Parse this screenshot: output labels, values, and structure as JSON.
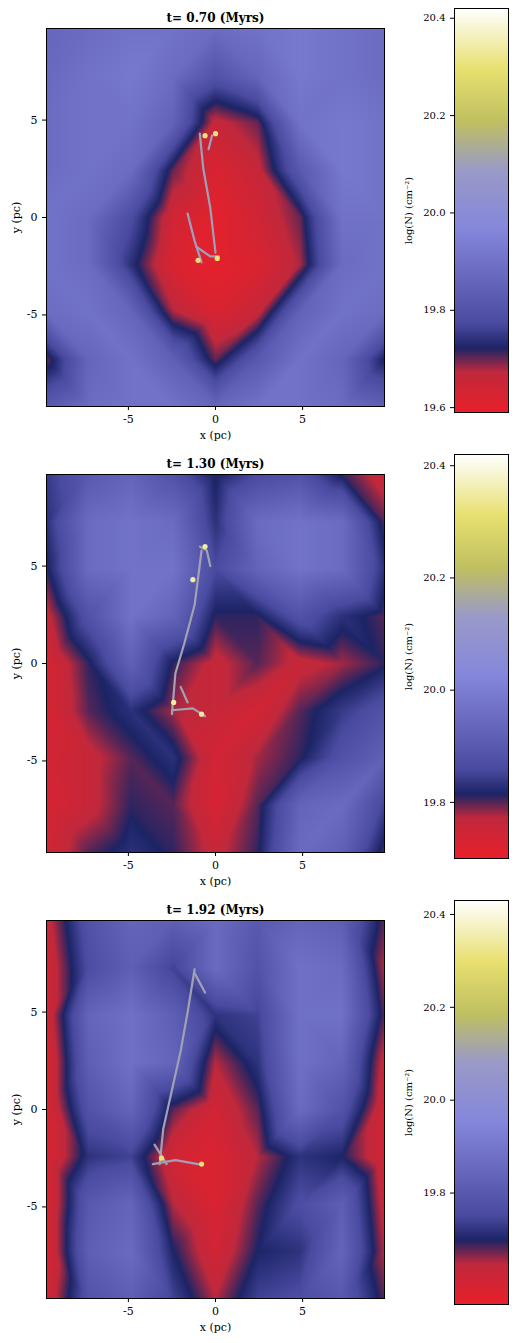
{
  "chart_data": [
    {
      "type": "heatmap",
      "title": "t= 0.70 (Myrs)",
      "x_label": "x (pc)",
      "y_label": "y (pc)",
      "xlim": [
        -9.7,
        9.7
      ],
      "ylim": [
        -9.7,
        9.7
      ],
      "xticks": [
        -5,
        0,
        5
      ],
      "yticks": [
        -5,
        0,
        5
      ],
      "cells": {
        "x": [
          -9.7,
          -7.275,
          -4.85,
          -2.425,
          0,
          2.425,
          4.85,
          7.275,
          9.7
        ],
        "y": [
          9.7,
          7.275,
          4.85,
          2.425,
          0,
          -2.425,
          -4.85,
          -7.275,
          -9.7
        ],
        "values": [
          [
            19.86,
            19.88,
            19.9,
            19.9,
            19.88,
            19.9,
            19.92,
            19.9,
            19.88
          ],
          [
            19.87,
            19.9,
            19.92,
            19.88,
            19.8,
            19.86,
            19.92,
            19.9,
            19.88
          ],
          [
            19.88,
            19.9,
            19.9,
            19.85,
            19.66,
            19.7,
            19.9,
            19.92,
            19.9
          ],
          [
            19.88,
            19.9,
            19.88,
            19.7,
            19.62,
            19.66,
            19.82,
            19.92,
            19.9
          ],
          [
            19.9,
            19.88,
            19.78,
            19.64,
            19.6,
            19.64,
            19.7,
            19.9,
            19.9
          ],
          [
            19.9,
            19.88,
            19.74,
            19.62,
            19.6,
            19.62,
            19.68,
            19.88,
            19.9
          ],
          [
            19.88,
            19.9,
            19.86,
            19.68,
            19.62,
            19.66,
            19.85,
            19.9,
            19.88
          ],
          [
            19.7,
            19.86,
            19.9,
            19.84,
            19.7,
            19.82,
            19.9,
            19.86,
            19.72
          ],
          [
            19.82,
            19.88,
            19.9,
            19.9,
            19.86,
            19.9,
            19.9,
            19.88,
            19.84
          ]
        ]
      },
      "filaments": [
        {
          "value": 20.1,
          "points": [
            [
              -0.9,
              4.3
            ],
            [
              -0.7,
              2.5
            ],
            [
              -0.3,
              0.5
            ],
            [
              0,
              -1.8
            ]
          ]
        },
        {
          "value": 20.1,
          "points": [
            [
              -1.6,
              0.2
            ],
            [
              -1.2,
              -1.2
            ],
            [
              -0.8,
              -2.3
            ]
          ]
        },
        {
          "value": 20.1,
          "points": [
            [
              -1.1,
              -1.5
            ],
            [
              -0.3,
              -2.0
            ],
            [
              0.2,
              -2.0
            ]
          ]
        },
        {
          "value": 20.1,
          "points": [
            [
              -0.2,
              4.2
            ],
            [
              -0.4,
              3.5
            ]
          ]
        }
      ],
      "peaks": {
        "x": [
          -0.6,
          0,
          -1,
          0.1
        ],
        "y": [
          4.2,
          4.3,
          -2.2,
          -2.1
        ],
        "values": [
          20.3,
          20.3,
          20.3,
          20.3
        ]
      },
      "colorbar": {
        "label": "log(N) (cm⁻²)",
        "range": [
          19.59,
          20.42
        ],
        "ticks": [
          19.6,
          19.8,
          {
            "value": 20,
            "label": "20.0"
          },
          20.2,
          20.4
        ]
      }
    },
    {
      "type": "heatmap",
      "title": "t= 1.30 (Myrs)",
      "x_label": "x (pc)",
      "y_label": "y (pc)",
      "xlim": [
        -9.7,
        9.7
      ],
      "ylim": [
        -9.7,
        9.7
      ],
      "xticks": [
        -5,
        0,
        5
      ],
      "yticks": [
        -5,
        0,
        5
      ],
      "cells": {
        "x": [
          -9.7,
          -7.275,
          -4.85,
          -2.425,
          0,
          2.425,
          4.85,
          7.275,
          9.7
        ],
        "y": [
          9.7,
          7.275,
          4.85,
          2.425,
          0,
          -2.425,
          -4.85,
          -7.275,
          -9.7
        ],
        "values": [
          [
            19.84,
            19.9,
            19.93,
            19.88,
            19.81,
            19.86,
            19.88,
            19.81,
            19.75
          ],
          [
            19.83,
            19.95,
            19.97,
            19.95,
            19.83,
            19.95,
            19.97,
            19.95,
            19.8
          ],
          [
            19.81,
            19.95,
            19.97,
            19.97,
            19.86,
            19.93,
            19.97,
            19.95,
            19.83
          ],
          [
            19.76,
            19.88,
            19.97,
            19.93,
            19.81,
            19.81,
            19.88,
            19.83,
            19.8
          ],
          [
            19.73,
            19.81,
            19.92,
            19.81,
            19.76,
            19.8,
            19.76,
            19.78,
            19.81
          ],
          [
            19.73,
            19.8,
            19.83,
            19.78,
            19.76,
            19.74,
            19.8,
            19.84,
            19.88
          ],
          [
            19.74,
            19.76,
            19.8,
            19.83,
            19.74,
            19.78,
            19.81,
            19.88,
            19.92
          ],
          [
            19.73,
            19.76,
            19.81,
            19.8,
            19.73,
            19.8,
            19.93,
            19.95,
            19.85
          ],
          [
            19.74,
            19.8,
            19.83,
            19.81,
            19.76,
            19.81,
            19.95,
            19.92,
            19.8
          ]
        ]
      },
      "filaments": [
        {
          "value": 20.15,
          "points": [
            [
              -0.9,
              6.0
            ],
            [
              -0.5,
              5.8
            ],
            [
              -0.3,
              5.0
            ]
          ]
        },
        {
          "value": 20.15,
          "points": [
            [
              -0.8,
              5.8
            ],
            [
              -1.2,
              3
            ],
            [
              -1.8,
              1
            ],
            [
              -2.3,
              -0.5
            ],
            [
              -2.5,
              -2.6
            ]
          ]
        },
        {
          "value": 20.15,
          "points": [
            [
              -2.5,
              -2.4
            ],
            [
              -1.3,
              -2.3
            ],
            [
              -0.6,
              -2.7
            ]
          ]
        },
        {
          "value": 20.15,
          "points": [
            [
              -2.0,
              -1.2
            ],
            [
              -1.6,
              -2.0
            ]
          ]
        }
      ],
      "peaks": {
        "x": [
          -0.6,
          -1.3,
          -2.4,
          -0.8
        ],
        "y": [
          6.0,
          4.3,
          -2.0,
          -2.6
        ],
        "values": [
          20.35,
          20.35,
          20.35,
          20.35
        ]
      },
      "colorbar": {
        "label": "log(N) (cm⁻²)",
        "range": [
          19.7,
          20.42
        ],
        "ticks": [
          19.8,
          {
            "value": 20,
            "label": "20.0"
          },
          20.2,
          20.4
        ]
      }
    },
    {
      "type": "heatmap",
      "title": "t= 1.92 (Myrs)",
      "x_label": "x (pc)",
      "y_label": "y (pc)",
      "xlim": [
        -9.7,
        9.7
      ],
      "ylim": [
        -9.7,
        9.7
      ],
      "xticks": [
        -5,
        0,
        5
      ],
      "yticks": [
        -5,
        0,
        5
      ],
      "cells": {
        "x": [
          -9.7,
          -7.275,
          -4.85,
          -2.425,
          0,
          2.425,
          4.85,
          7.275,
          9.7
        ],
        "y": [
          9.7,
          7.275,
          4.85,
          2.425,
          0,
          -2.425,
          -4.85,
          -7.275,
          -9.7
        ],
        "values": [
          [
            19.63,
            19.78,
            19.84,
            19.82,
            19.86,
            19.8,
            19.84,
            19.82,
            19.68
          ],
          [
            19.61,
            19.76,
            19.82,
            19.74,
            19.86,
            19.78,
            19.88,
            19.86,
            19.65
          ],
          [
            19.61,
            19.84,
            19.88,
            19.82,
            19.72,
            19.74,
            19.88,
            19.88,
            19.68
          ],
          [
            19.59,
            19.82,
            19.88,
            19.84,
            19.65,
            19.72,
            19.88,
            19.84,
            19.63
          ],
          [
            19.59,
            19.78,
            19.84,
            19.68,
            19.61,
            19.68,
            19.86,
            19.78,
            19.61
          ],
          [
            19.59,
            19.72,
            19.74,
            19.61,
            19.59,
            19.65,
            19.72,
            19.7,
            19.61
          ],
          [
            19.59,
            19.8,
            19.84,
            19.65,
            19.59,
            19.68,
            19.76,
            19.82,
            19.63
          ],
          [
            19.59,
            19.82,
            19.86,
            19.7,
            19.61,
            19.7,
            19.72,
            19.84,
            19.65
          ],
          [
            19.61,
            19.78,
            19.82,
            19.74,
            19.65,
            19.74,
            19.76,
            19.8,
            19.68
          ]
        ]
      },
      "filaments": [
        {
          "value": 20.1,
          "points": [
            [
              -1.2,
              7.2
            ],
            [
              -1.6,
              5
            ],
            [
              -2,
              3
            ],
            [
              -2.5,
              1
            ],
            [
              -3,
              -1
            ],
            [
              -3.2,
              -2.8
            ]
          ]
        },
        {
          "value": 20.1,
          "points": [
            [
              -1.2,
              7.0
            ],
            [
              -0.6,
              6
            ]
          ]
        },
        {
          "value": 20.1,
          "points": [
            [
              -3.6,
              -2.8
            ],
            [
              -2.3,
              -2.6
            ],
            [
              -1,
              -2.8
            ]
          ]
        },
        {
          "value": 20.1,
          "points": [
            [
              -3.5,
              -1.8
            ],
            [
              -2.8,
              -2.8
            ]
          ]
        }
      ],
      "peaks": {
        "x": [
          -3.1,
          -0.8
        ],
        "y": [
          -2.5,
          -2.8
        ],
        "values": [
          20.3,
          20.3
        ]
      },
      "colorbar": {
        "label": "log(N) (cm⁻²)",
        "range": [
          19.56,
          20.43
        ],
        "ticks": [
          19.8,
          {
            "value": 20,
            "label": "20.0"
          },
          20.2,
          20.4
        ]
      }
    }
  ]
}
